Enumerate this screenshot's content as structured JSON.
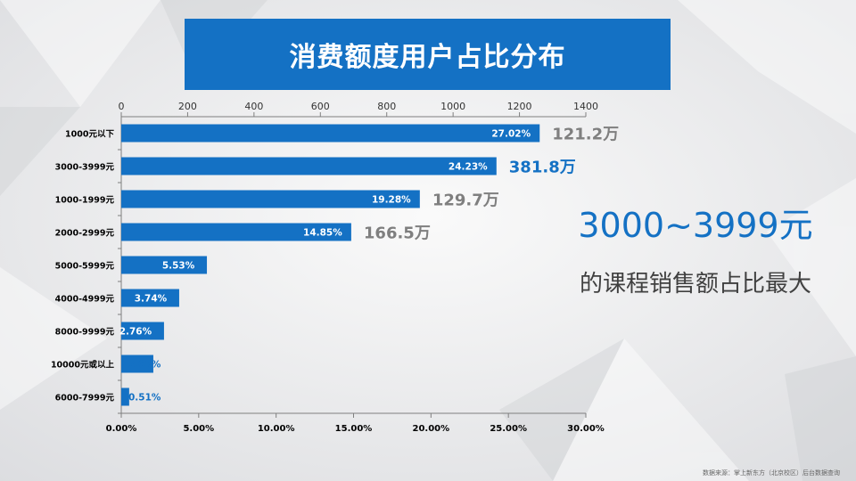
{
  "header": {
    "title": "消费额度用户占比分布"
  },
  "highlight": {
    "main": "3000~3999元",
    "sub": "的课程销售额占比最大"
  },
  "footer": {
    "source": "数据来源：掌上新东方（北京校区）后台数据查询"
  },
  "colors": {
    "bar": "#1471c4",
    "accent": "#1471c4",
    "gray": "#7f7f7f"
  },
  "chart_data": {
    "type": "bar",
    "orientation": "horizontal",
    "title": "消费额度用户占比分布",
    "categories": [
      "1000元以下",
      "3000-3999元",
      "1000-1999元",
      "2000-2999元",
      "5000-5999元",
      "4000-4999元",
      "8000-9999元",
      "10000元或以上",
      "6000-7999元"
    ],
    "values": [
      27.02,
      24.23,
      19.28,
      14.85,
      5.53,
      3.74,
      2.76,
      2.07,
      0.51
    ],
    "value_labels": [
      "27.02%",
      "24.23%",
      "19.28%",
      "14.85%",
      "5.53%",
      "3.74%",
      "2.76%",
      "2.07%",
      "0.51%"
    ],
    "bottom_axis": {
      "unit": "percent",
      "min": 0,
      "max": 30,
      "ticks": [
        "0.00%",
        "5.00%",
        "10.00%",
        "15.00%",
        "20.00%",
        "25.00%",
        "30.00%"
      ]
    },
    "top_axis": {
      "min": 0,
      "max": 1400,
      "ticks": [
        "0",
        "200",
        "400",
        "600",
        "800",
        "1000",
        "1200",
        "1400"
      ]
    },
    "annotations": [
      {
        "category": "1000元以下",
        "text": "121.2万",
        "style": "gray"
      },
      {
        "category": "3000-3999元",
        "text": "381.8万",
        "style": "accent"
      },
      {
        "category": "1000-1999元",
        "text": "129.7万",
        "style": "gray"
      },
      {
        "category": "2000-2999元",
        "text": "166.5万",
        "style": "gray"
      }
    ],
    "grid": false
  }
}
